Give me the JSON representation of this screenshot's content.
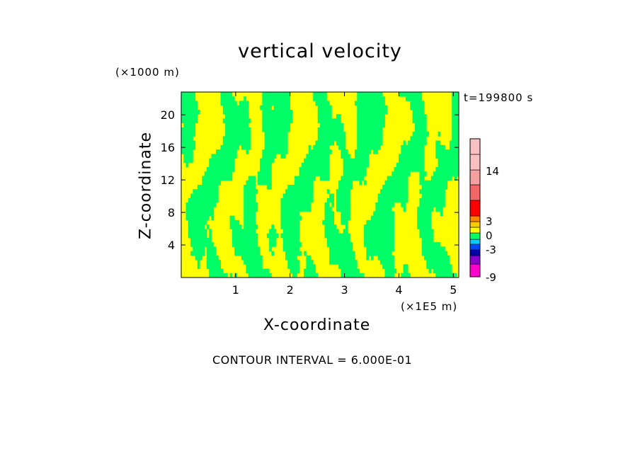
{
  "title": "vertical velocity",
  "time_label": "t=199800 s",
  "footer": "CONTOUR INTERVAL = 6.000E-01",
  "colors": {
    "positive_small": "#ffff00",
    "negative_small": "#00ff66",
    "background": "#ffffff"
  },
  "chart_data": {
    "type": "heatmap",
    "title": "vertical velocity",
    "xlabel": "X-coordinate",
    "ylabel": "Z-coordinate",
    "x_unit": "(×1E5 m)",
    "z_unit": "(×1000 m)",
    "x_ticks": [
      1,
      2,
      3,
      4,
      5
    ],
    "y_ticks": [
      4,
      8,
      12,
      16,
      20
    ],
    "xlim": [
      0,
      5.1
    ],
    "ylim": [
      0,
      22.8
    ],
    "contour_interval": 0.6,
    "fields": [
      {
        "name": "0 to 0.6",
        "color": "#ffff00"
      },
      {
        "name": "-0.6 to 0",
        "color": "#00ff66"
      }
    ],
    "colorbar": {
      "tick_labels": [
        "14",
        "3",
        "0",
        "-3",
        "-9"
      ],
      "levels": [
        {
          "color": "#ff00cc"
        },
        {
          "color": "#8800cc"
        },
        {
          "color": "#0000aa"
        },
        {
          "color": "#0044ff"
        },
        {
          "color": "#00ccff"
        },
        {
          "color": "#00ff66"
        },
        {
          "color": "#ffff00"
        },
        {
          "color": "#ffcc00"
        },
        {
          "color": "#ff8800"
        },
        {
          "color": "#ff0000"
        },
        {
          "color": "#f26666"
        },
        {
          "color": "#f5a0a0"
        },
        {
          "color": "#f8c0c0"
        }
      ]
    }
  }
}
